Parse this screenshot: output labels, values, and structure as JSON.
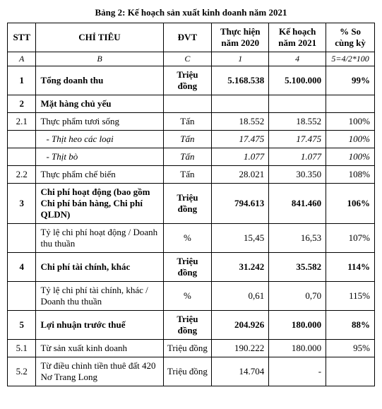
{
  "title": "Bảng 2: Kế hoạch sản xuất kinh doanh năm 2021",
  "headers": {
    "stt": "STT",
    "chitieu": "CHỈ TIÊU",
    "dvt": "ĐVT",
    "th2020": "Thực hiện năm 2020",
    "kh2021": "Kế hoạch năm 2021",
    "pct": "% So cùng kỳ"
  },
  "formula": {
    "a": "A",
    "b": "B",
    "c": "C",
    "c1": "1",
    "c4": "4",
    "c5": "5=4/2*100"
  },
  "rows": [
    {
      "id": "r1",
      "stt": "1",
      "ct": "Tổng doanh thu",
      "dvt": "Triệu đồng",
      "th": "5.168.538",
      "kh": "5.100.000",
      "pc": "99%",
      "bold": true
    },
    {
      "id": "r2",
      "stt": "2",
      "ct": "Mặt hàng chủ yếu",
      "dvt": "",
      "th": "",
      "kh": "",
      "pc": "",
      "bold": true
    },
    {
      "id": "r3",
      "stt": "2.1",
      "ct": "Thực phẩm tươi sống",
      "dvt": "Tấn",
      "th": "18.552",
      "kh": "18.552",
      "pc": "100%"
    },
    {
      "id": "r4",
      "stt": "",
      "ct": "- Thịt heo các loại",
      "dvt": "Tấn",
      "th": "17.475",
      "kh": "17.475",
      "pc": "100%",
      "italic": true,
      "indent": true
    },
    {
      "id": "r5",
      "stt": "",
      "ct": "- Thịt bò",
      "dvt": "Tấn",
      "th": "1.077",
      "kh": "1.077",
      "pc": "100%",
      "italic": true,
      "indent": true
    },
    {
      "id": "r6",
      "stt": "2.2",
      "ct": "Thực phẩm chế biến",
      "dvt": "Tấn",
      "th": "28.021",
      "kh": "30.350",
      "pc": "108%"
    },
    {
      "id": "r7",
      "stt": "3",
      "ct": "Chi phí hoạt động (bao gồm Chi phí bán hàng, Chi phí QLDN)",
      "dvt": "Triệu đồng",
      "th": "794.613",
      "kh": "841.460",
      "pc": "106%",
      "bold": true
    },
    {
      "id": "r8",
      "stt": "",
      "ct": "Tỷ lệ chi phí hoạt động / Doanh thu thuần",
      "dvt": "%",
      "th": "15,45",
      "kh": "16,53",
      "pc": "107%"
    },
    {
      "id": "r9",
      "stt": "4",
      "ct": "Chi phí tài chính, khác",
      "dvt": "Triệu đồng",
      "th": "31.242",
      "kh": "35.582",
      "pc": "114%",
      "bold": true
    },
    {
      "id": "r10",
      "stt": "",
      "ct": "Tỷ lệ chi phí tài chính, khác / Doanh thu thuần",
      "dvt": "%",
      "th": "0,61",
      "kh": "0,70",
      "pc": "115%"
    },
    {
      "id": "r11",
      "stt": "5",
      "ct": "Lợi nhuận trước thuế",
      "dvt": "Triệu đồng",
      "th": "204.926",
      "kh": "180.000",
      "pc": "88%",
      "bold": true
    },
    {
      "id": "r12",
      "stt": "5.1",
      "ct": "Từ sản xuất kinh doanh",
      "dvt": "Triệu đồng",
      "th": "190.222",
      "kh": "180.000",
      "pc": "95%"
    },
    {
      "id": "r13",
      "stt": "5.2",
      "ct": "Từ điều chỉnh tiền thuê đất 420 Nơ Trang Long",
      "dvt": "Triệu đồng",
      "th": "14.704",
      "kh": "-",
      "pc": ""
    }
  ]
}
